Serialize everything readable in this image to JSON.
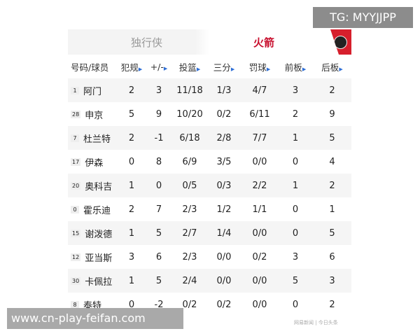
{
  "watermark_top": "TG: MYYJJPP",
  "watermark_bottom": "www.cn-play-feifan.com",
  "source_credit": "网易新闻 | 今日头条",
  "teams": {
    "away": "独行侠",
    "home": "火箭",
    "home_color": "#c8102e"
  },
  "columns": [
    "号码/球员",
    "犯规",
    "+/-",
    "投篮",
    "三分",
    "罚球",
    "前板",
    "后板"
  ],
  "players": [
    {
      "num": "1",
      "name": "阿门",
      "stats": [
        "2",
        "3",
        "11/18",
        "1/3",
        "4/7",
        "3",
        "2"
      ]
    },
    {
      "num": "28",
      "name": "申京",
      "stats": [
        "5",
        "9",
        "10/20",
        "0/2",
        "6/11",
        "2",
        "9"
      ]
    },
    {
      "num": "7",
      "name": "杜兰特",
      "stats": [
        "2",
        "-1",
        "6/18",
        "2/8",
        "7/7",
        "1",
        "5"
      ]
    },
    {
      "num": "17",
      "name": "伊森",
      "stats": [
        "0",
        "8",
        "6/9",
        "3/5",
        "0/0",
        "0",
        "4"
      ]
    },
    {
      "num": "20",
      "name": "奥科吉",
      "stats": [
        "1",
        "0",
        "0/5",
        "0/3",
        "2/2",
        "1",
        "2"
      ]
    },
    {
      "num": "0",
      "name": "霍乐迪",
      "stats": [
        "2",
        "7",
        "2/3",
        "1/2",
        "1/1",
        "0",
        "1"
      ]
    },
    {
      "num": "15",
      "name": "谢泼德",
      "stats": [
        "1",
        "5",
        "2/7",
        "1/4",
        "0/0",
        "0",
        "5"
      ]
    },
    {
      "num": "12",
      "name": "亚当斯",
      "stats": [
        "3",
        "6",
        "2/3",
        "0/0",
        "0/2",
        "3",
        "6"
      ]
    },
    {
      "num": "30",
      "name": "卡佩拉",
      "stats": [
        "1",
        "5",
        "2/4",
        "0/0",
        "0/0",
        "5",
        "3"
      ]
    },
    {
      "num": "8",
      "name": "泰特",
      "stats": [
        "0",
        "-2",
        "0/2",
        "0/2",
        "0/0",
        "0",
        "2"
      ]
    }
  ]
}
